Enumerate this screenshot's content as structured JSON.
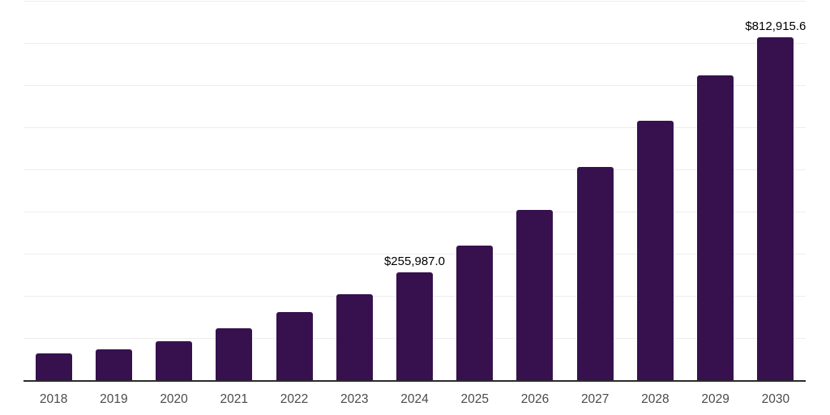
{
  "chart_data": {
    "type": "bar",
    "title": "",
    "xlabel": "",
    "ylabel": "",
    "categories": [
      "2018",
      "2019",
      "2020",
      "2021",
      "2022",
      "2023",
      "2024",
      "2025",
      "2026",
      "2027",
      "2028",
      "2029",
      "2030"
    ],
    "values": [
      64000,
      72500,
      91700,
      123700,
      162100,
      203200,
      255987.0,
      319800,
      403800,
      505800,
      615400,
      722400,
      812915.6
    ],
    "data_labels": {
      "2024": "$255,987.0",
      "2030": "$812,915.6"
    },
    "ylim": [
      0,
      900000
    ],
    "gridline_step": 100000,
    "grid": "horizontal-only",
    "legend": "none",
    "y_tick_labels": "none"
  },
  "colors": {
    "bar": "#36114E",
    "gridline": "#EDEDED",
    "axis_line": "#2B2B2B",
    "value_label": "#000000",
    "tick_label": "#4A4A4A",
    "background": "#FFFFFF"
  }
}
